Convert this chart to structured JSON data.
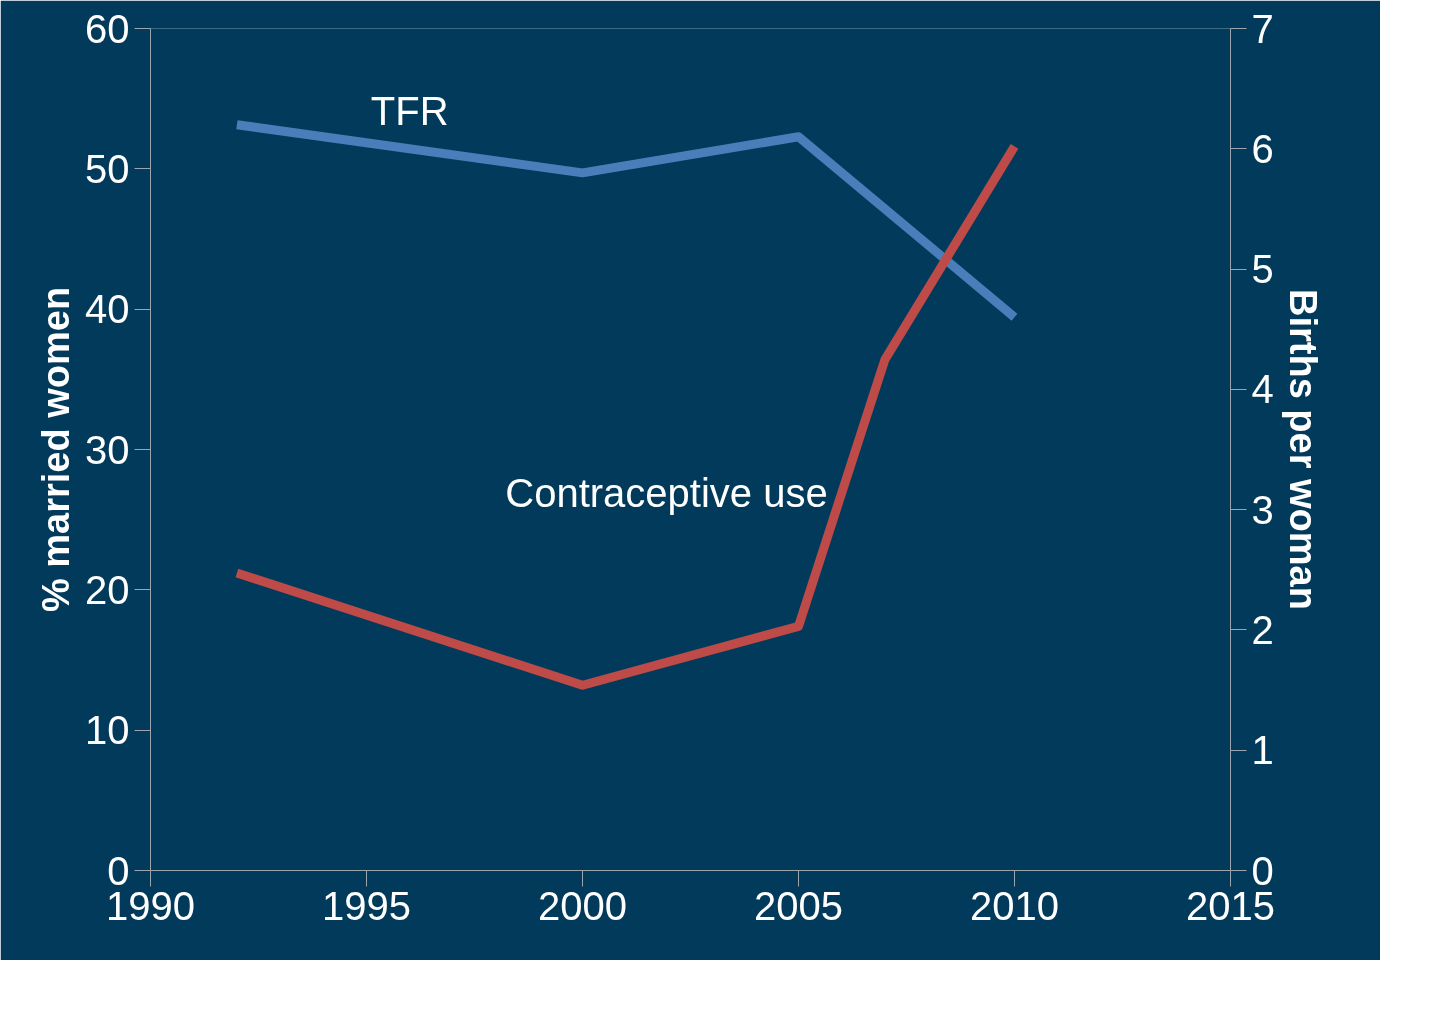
{
  "chart_data": {
    "type": "line",
    "ylabel": "% married women",
    "y2label": "Births per woman",
    "xlim": [
      1990,
      2015
    ],
    "xticks": [
      1990,
      1995,
      2000,
      2005,
      2010,
      2015
    ],
    "ylim": [
      0,
      60
    ],
    "yticks": [
      0,
      10,
      20,
      30,
      40,
      50,
      60
    ],
    "y2lim": [
      0,
      7
    ],
    "y2ticks": [
      0,
      1,
      2,
      3,
      4,
      5,
      6,
      7
    ],
    "grid": false,
    "legend": false,
    "marker": "none",
    "line_style": "solid",
    "series": [
      {
        "name": "TFR",
        "color": "#4a7ebb",
        "axis": "y2",
        "x": [
          1992,
          2000,
          2005,
          2010
        ],
        "values": [
          6.2,
          5.8,
          6.1,
          4.6
        ]
      },
      {
        "name": "Contraceptive use",
        "color": "#be4b48",
        "axis": "y",
        "x": [
          1992,
          2000,
          2005,
          2007,
          2010
        ],
        "values": [
          21.2,
          13.2,
          17.4,
          36.4,
          51.6
        ]
      }
    ]
  }
}
